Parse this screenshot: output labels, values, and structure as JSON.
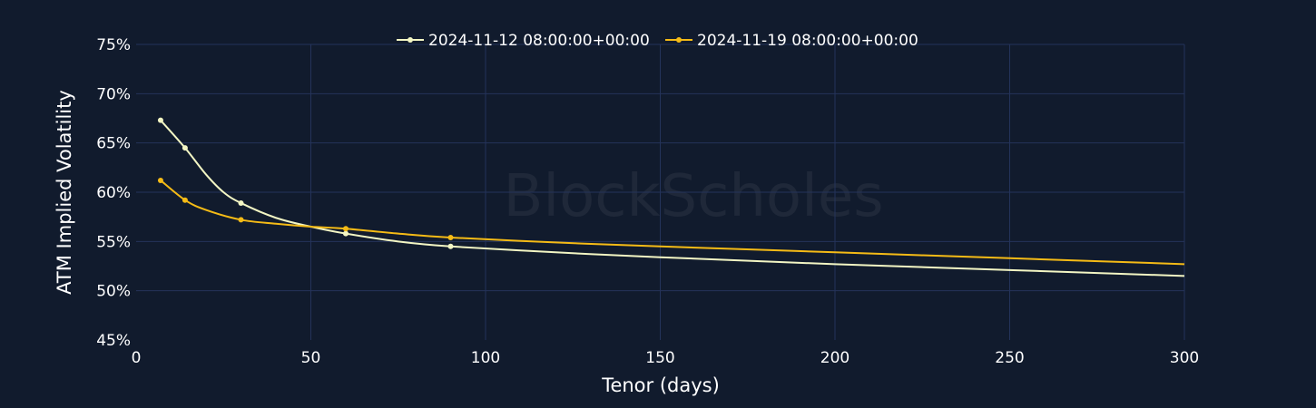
{
  "watermark": "BlockScholes",
  "colors": {
    "background": "#111b2d",
    "grid": "#24335a",
    "text": "#ffffff"
  },
  "chart_data": {
    "type": "line",
    "title": "",
    "xlabel": "Tenor (days)",
    "ylabel": "ATM Implied Volatility",
    "xlim": [
      0,
      300
    ],
    "ylim": [
      45,
      75
    ],
    "x_ticks": [
      0,
      50,
      100,
      150,
      200,
      250,
      300
    ],
    "y_ticks": [
      45,
      50,
      55,
      60,
      65,
      70,
      75
    ],
    "y_tick_format": "percent",
    "grid": true,
    "legend_position": "top-center",
    "series": [
      {
        "name": "2024-11-12 08:00:00+00:00",
        "color": "#f3f6c4",
        "markers": [
          [
            7,
            67.3
          ],
          [
            14,
            64.5
          ],
          [
            30,
            58.9
          ],
          [
            60,
            55.8
          ],
          [
            90,
            54.5
          ]
        ],
        "curve": [
          [
            7,
            67.3
          ],
          [
            14,
            64.5
          ],
          [
            20,
            61.8
          ],
          [
            25,
            60.0
          ],
          [
            30,
            58.9
          ],
          [
            40,
            57.4
          ],
          [
            50,
            56.5
          ],
          [
            60,
            55.8
          ],
          [
            75,
            55.0
          ],
          [
            90,
            54.5
          ],
          [
            120,
            53.9
          ],
          [
            150,
            53.4
          ],
          [
            200,
            52.7
          ],
          [
            250,
            52.1
          ],
          [
            300,
            51.5
          ]
        ]
      },
      {
        "name": "2024-11-19 08:00:00+00:00",
        "color": "#f5bb16",
        "markers": [
          [
            7,
            61.2
          ],
          [
            14,
            59.2
          ],
          [
            30,
            57.2
          ],
          [
            60,
            56.3
          ],
          [
            90,
            55.4
          ]
        ],
        "curve": [
          [
            7,
            61.2
          ],
          [
            14,
            59.2
          ],
          [
            20,
            58.2
          ],
          [
            30,
            57.2
          ],
          [
            40,
            56.8
          ],
          [
            50,
            56.5
          ],
          [
            60,
            56.3
          ],
          [
            75,
            55.8
          ],
          [
            90,
            55.4
          ],
          [
            120,
            54.9
          ],
          [
            150,
            54.5
          ],
          [
            200,
            53.9
          ],
          [
            250,
            53.3
          ],
          [
            300,
            52.7
          ]
        ]
      }
    ]
  }
}
